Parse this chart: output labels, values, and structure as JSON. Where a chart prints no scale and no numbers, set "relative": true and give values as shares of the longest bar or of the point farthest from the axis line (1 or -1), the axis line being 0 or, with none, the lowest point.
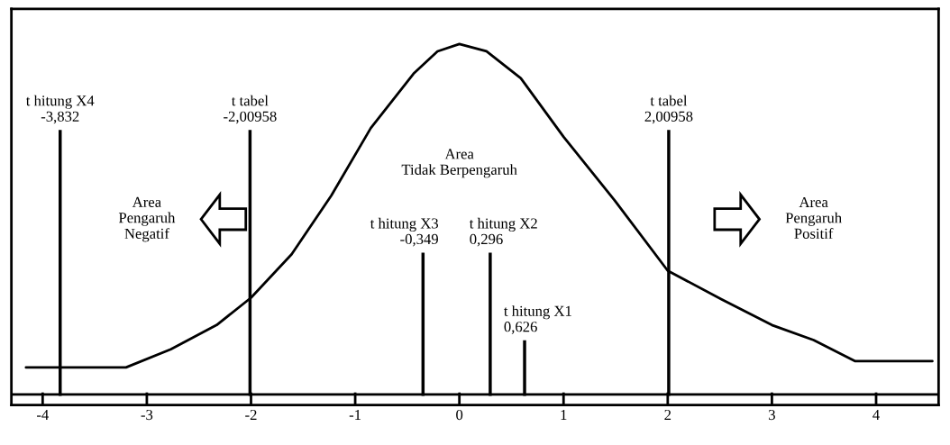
{
  "chart_data": {
    "type": "line",
    "relative": true,
    "color": "#000000",
    "x": [
      -4.16,
      -3.2,
      -2.77,
      -2.33,
      -2.0,
      -1.61,
      -1.23,
      -0.85,
      -0.44,
      -0.21,
      0,
      0.26,
      0.59,
      1.0,
      1.49,
      2.0,
      2.52,
      3.0,
      3.4,
      3.8,
      4.54
    ],
    "values": [
      0.077,
      0.077,
      0.129,
      0.198,
      0.276,
      0.4,
      0.567,
      0.76,
      0.915,
      0.979,
      1,
      0.979,
      0.902,
      0.735,
      0.554,
      0.353,
      0.271,
      0.198,
      0.155,
      0.095,
      0.095
    ],
    "xlim": [
      -4.3,
      4.6
    ],
    "xticks": [
      -4,
      -3,
      -2,
      -1,
      0,
      1,
      2,
      3,
      4
    ],
    "ref_lines": [
      {
        "axis": "x",
        "value": -3.832,
        "label": "t hitung X4\n-3,832",
        "color": "#000000"
      },
      {
        "axis": "x",
        "value": -2.00958,
        "label": "t tabel\n-2,00958",
        "color": "#000000"
      },
      {
        "axis": "x",
        "value": -0.349,
        "label": "t hitung X3\n-0,349",
        "color": "#000000"
      },
      {
        "axis": "x",
        "value": 0.296,
        "label": "t hitung X2\n0,296",
        "color": "#000000"
      },
      {
        "axis": "x",
        "value": 0.626,
        "label": "t hitung X1\n0,626",
        "color": "#000000"
      },
      {
        "axis": "x",
        "value": 2.00958,
        "label": "t tabel\n2,00958",
        "color": "#000000"
      }
    ],
    "annotations": [
      "Area\nPengaruh\nNegatif",
      "Area\nTidak Berpengaruh",
      "Area\nPengaruh\nPositif"
    ],
    "grid": false
  }
}
